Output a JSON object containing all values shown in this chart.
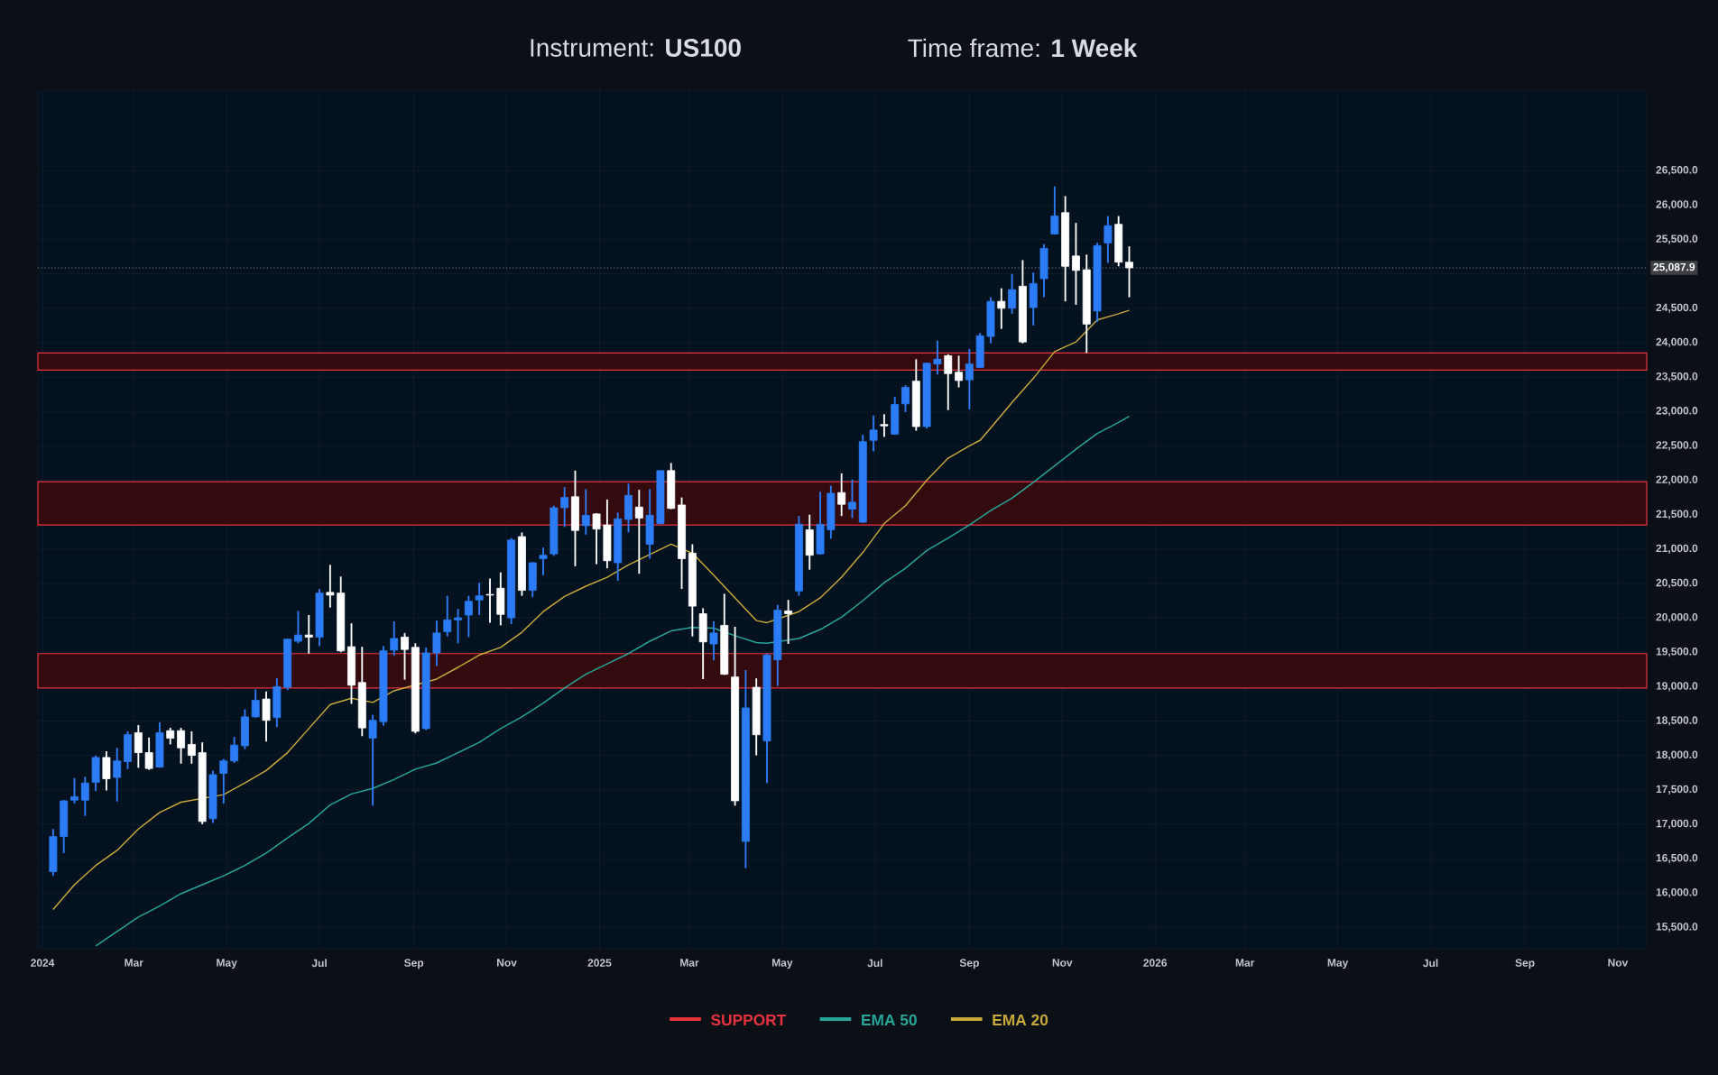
{
  "chart_data": {
    "type": "candlestick",
    "title": "Instrument: **US100**",
    "subtitle": "Time frame: **1 Week**",
    "x": [
      "2024-01-08",
      "2024-01-15",
      "2024-01-22",
      "2024-01-29",
      "2024-02-05",
      "2024-02-12",
      "2024-02-19",
      "2024-02-26",
      "2024-03-04",
      "2024-03-11",
      "2024-03-18",
      "2024-03-25",
      "2024-04-01",
      "2024-04-08",
      "2024-04-15",
      "2024-04-22",
      "2024-04-29",
      "2024-05-06",
      "2024-05-13",
      "2024-05-20",
      "2024-05-27",
      "2024-06-03",
      "2024-06-10",
      "2024-06-17",
      "2024-06-24",
      "2024-07-01",
      "2024-07-08",
      "2024-07-15",
      "2024-07-22",
      "2024-07-29",
      "2024-08-05",
      "2024-08-12",
      "2024-08-19",
      "2024-08-26",
      "2024-09-02",
      "2024-09-09",
      "2024-09-16",
      "2024-09-23",
      "2024-09-30",
      "2024-10-07",
      "2024-10-14",
      "2024-10-21",
      "2024-10-28",
      "2024-11-04",
      "2024-11-11",
      "2024-11-18",
      "2024-11-25",
      "2024-12-02",
      "2024-12-09",
      "2024-12-16",
      "2024-12-23",
      "2024-12-30",
      "2025-01-06",
      "2025-01-13",
      "2025-01-20",
      "2025-01-27",
      "2025-02-03",
      "2025-02-10",
      "2025-02-17",
      "2025-02-24",
      "2025-03-03",
      "2025-03-10",
      "2025-03-17",
      "2025-03-24",
      "2025-03-31",
      "2025-04-07",
      "2025-04-14",
      "2025-04-21",
      "2025-04-28",
      "2025-05-05",
      "2025-05-12",
      "2025-05-19",
      "2025-05-26",
      "2025-06-02",
      "2025-06-09",
      "2025-06-16",
      "2025-06-23",
      "2025-06-30",
      "2025-07-07",
      "2025-07-14",
      "2025-07-21",
      "2025-07-28",
      "2025-08-04",
      "2025-08-11",
      "2025-08-18",
      "2025-08-25",
      "2025-09-01",
      "2025-09-08",
      "2025-09-15",
      "2025-09-22",
      "2025-09-29",
      "2025-10-06",
      "2025-10-13",
      "2025-10-20",
      "2025-10-27",
      "2025-11-03",
      "2025-11-10",
      "2025-11-17",
      "2025-11-24",
      "2025-12-01",
      "2025-12-08",
      "2025-12-15"
    ],
    "ohlc": [
      [
        16310,
        16930,
        16250,
        16820
      ],
      [
        16820,
        17350,
        16580,
        17340
      ],
      [
        17350,
        17670,
        17300,
        17400
      ],
      [
        17350,
        17690,
        17120,
        17600
      ],
      [
        17610,
        18000,
        17480,
        17970
      ],
      [
        17970,
        18060,
        17490,
        17660
      ],
      [
        17680,
        18110,
        17330,
        17920
      ],
      [
        17910,
        18350,
        17800,
        18300
      ],
      [
        18330,
        18440,
        17820,
        18040
      ],
      [
        18040,
        18260,
        17790,
        17810
      ],
      [
        17830,
        18480,
        17820,
        18330
      ],
      [
        18360,
        18400,
        18160,
        18250
      ],
      [
        18360,
        18400,
        17880,
        18110
      ],
      [
        18160,
        18350,
        17880,
        18000
      ],
      [
        18040,
        18190,
        17000,
        17040
      ],
      [
        17080,
        17780,
        17020,
        17720
      ],
      [
        17740,
        17950,
        17300,
        17920
      ],
      [
        17920,
        18270,
        17890,
        18150
      ],
      [
        18140,
        18670,
        18090,
        18560
      ],
      [
        18560,
        18960,
        18550,
        18800
      ],
      [
        18820,
        18930,
        18200,
        18510
      ],
      [
        18550,
        19120,
        18410,
        19000
      ],
      [
        18990,
        19690,
        18950,
        19690
      ],
      [
        19660,
        20100,
        19630,
        19750
      ],
      [
        19750,
        20040,
        19480,
        19720
      ],
      [
        19720,
        20420,
        19590,
        20360
      ],
      [
        20370,
        20770,
        20150,
        20330
      ],
      [
        20360,
        20600,
        19500,
        19520
      ],
      [
        19580,
        19920,
        18750,
        19020
      ],
      [
        19060,
        19580,
        18280,
        18400
      ],
      [
        18250,
        18590,
        17270,
        18510
      ],
      [
        18490,
        19590,
        18430,
        19520
      ],
      [
        19530,
        19950,
        19450,
        19700
      ],
      [
        19720,
        19780,
        19100,
        19540
      ],
      [
        19570,
        19630,
        18320,
        18350
      ],
      [
        18390,
        19570,
        18370,
        19490
      ],
      [
        19490,
        19960,
        19300,
        19780
      ],
      [
        19800,
        20320,
        19730,
        19970
      ],
      [
        19970,
        20130,
        19630,
        20000
      ],
      [
        20040,
        20320,
        19720,
        20240
      ],
      [
        20260,
        20510,
        20040,
        20320
      ],
      [
        20340,
        20570,
        19930,
        20330
      ],
      [
        20430,
        20660,
        19890,
        20050
      ],
      [
        20000,
        21160,
        19910,
        21130
      ],
      [
        21180,
        21240,
        20320,
        20400
      ],
      [
        20400,
        20810,
        20300,
        20800
      ],
      [
        20860,
        21020,
        20620,
        20910
      ],
      [
        20930,
        21630,
        20900,
        21600
      ],
      [
        21600,
        21900,
        21320,
        21750
      ],
      [
        21760,
        22140,
        20750,
        21270
      ],
      [
        21340,
        21870,
        21210,
        21490
      ],
      [
        21510,
        21520,
        20780,
        21290
      ],
      [
        21350,
        21720,
        20720,
        20830
      ],
      [
        20800,
        21530,
        20540,
        21440
      ],
      [
        21430,
        21950,
        21240,
        21780
      ],
      [
        21610,
        21860,
        20640,
        21450
      ],
      [
        21070,
        21870,
        20860,
        21490
      ],
      [
        21370,
        22140,
        21360,
        22140
      ],
      [
        22140,
        22250,
        21580,
        21590
      ],
      [
        21640,
        21750,
        20420,
        20860
      ],
      [
        20940,
        21070,
        19730,
        20170
      ],
      [
        20060,
        20140,
        19110,
        19650
      ],
      [
        19620,
        19950,
        19380,
        19780
      ],
      [
        19890,
        20350,
        19170,
        19180
      ],
      [
        19140,
        19870,
        17270,
        17340
      ],
      [
        16750,
        19240,
        16360,
        18690
      ],
      [
        18990,
        19120,
        18000,
        18300
      ],
      [
        18210,
        19480,
        17600,
        19460
      ],
      [
        19390,
        20190,
        19010,
        20110
      ],
      [
        20100,
        20260,
        19620,
        20060
      ],
      [
        20390,
        21480,
        20320,
        21360
      ],
      [
        21280,
        21500,
        20700,
        20910
      ],
      [
        20930,
        21830,
        20920,
        21360
      ],
      [
        21280,
        21920,
        21150,
        21810
      ],
      [
        21820,
        22100,
        21480,
        21650
      ],
      [
        21580,
        22010,
        21450,
        21680
      ],
      [
        21390,
        22660,
        21380,
        22560
      ],
      [
        22580,
        22940,
        22420,
        22730
      ],
      [
        22810,
        22960,
        22630,
        22790
      ],
      [
        22670,
        23210,
        22660,
        23100
      ],
      [
        23110,
        23380,
        22990,
        23350
      ],
      [
        23440,
        23760,
        22720,
        22780
      ],
      [
        22780,
        23710,
        22750,
        23700
      ],
      [
        23690,
        24030,
        23540,
        23760
      ],
      [
        23810,
        23830,
        23020,
        23550
      ],
      [
        23570,
        23810,
        23350,
        23450
      ],
      [
        23460,
        23910,
        23030,
        23690
      ],
      [
        23640,
        24140,
        23630,
        24100
      ],
      [
        24090,
        24660,
        23990,
        24600
      ],
      [
        24600,
        24790,
        24200,
        24500
      ],
      [
        24500,
        25000,
        24420,
        24770
      ],
      [
        24820,
        25200,
        23990,
        24010
      ],
      [
        24510,
        25020,
        24250,
        24860
      ],
      [
        24930,
        25430,
        24660,
        25370
      ],
      [
        25580,
        26270,
        25570,
        25840
      ],
      [
        25890,
        26130,
        24600,
        25110
      ],
      [
        25260,
        25740,
        24550,
        25050
      ],
      [
        25060,
        25280,
        23850,
        24270
      ],
      [
        24460,
        25450,
        24300,
        25410
      ],
      [
        25450,
        25840,
        25160,
        25700
      ],
      [
        25720,
        25840,
        25110,
        25170
      ],
      [
        25170,
        25400,
        24660,
        25087.9
      ]
    ],
    "colors": [
      "#2b7cf6",
      "#2b7cf6",
      "#2b7cf6",
      "#2b7cf6",
      "#2b7cf6",
      "#ffffff",
      "#2b7cf6",
      "#2b7cf6",
      "#ffffff",
      "#ffffff",
      "#2b7cf6",
      "#ffffff",
      "#ffffff",
      "#ffffff",
      "#ffffff",
      "#2b7cf6",
      "#2b7cf6",
      "#2b7cf6",
      "#2b7cf6",
      "#2b7cf6",
      "#ffffff",
      "#2b7cf6",
      "#2b7cf6",
      "#2b7cf6",
      "#ffffff",
      "#2b7cf6",
      "#ffffff",
      "#ffffff",
      "#ffffff",
      "#ffffff",
      "#2b7cf6",
      "#2b7cf6",
      "#2b7cf6",
      "#ffffff",
      "#ffffff",
      "#2b7cf6",
      "#2b7cf6",
      "#2b7cf6",
      "#2b7cf6",
      "#2b7cf6",
      "#2b7cf6",
      "#ffffff",
      "#ffffff",
      "#2b7cf6",
      "#ffffff",
      "#2b7cf6",
      "#2b7cf6",
      "#2b7cf6",
      "#2b7cf6",
      "#ffffff",
      "#2b7cf6",
      "#ffffff",
      "#ffffff",
      "#2b7cf6",
      "#2b7cf6",
      "#ffffff",
      "#2b7cf6",
      "#2b7cf6",
      "#ffffff",
      "#ffffff",
      "#ffffff",
      "#ffffff",
      "#2b7cf6",
      "#ffffff",
      "#ffffff",
      "#2b7cf6",
      "#ffffff",
      "#2b7cf6",
      "#2b7cf6",
      "#ffffff",
      "#2b7cf6",
      "#ffffff",
      "#2b7cf6",
      "#2b7cf6",
      "#ffffff",
      "#2b7cf6",
      "#2b7cf6",
      "#2b7cf6",
      "#ffffff",
      "#2b7cf6",
      "#2b7cf6",
      "#ffffff",
      "#2b7cf6",
      "#2b7cf6",
      "#ffffff",
      "#ffffff",
      "#2b7cf6",
      "#2b7cf6",
      "#2b7cf6",
      "#ffffff",
      "#2b7cf6",
      "#ffffff",
      "#2b7cf6",
      "#2b7cf6",
      "#2b7cf6",
      "#ffffff",
      "#ffffff",
      "#ffffff",
      "#2b7cf6",
      "#2b7cf6",
      "#ffffff",
      "#ffffff"
    ],
    "series": [
      {
        "type": "line",
        "name": "EMA 50",
        "color": "#26a69a",
        "x": [
          "2024-02-05",
          "2024-02-19",
          "2024-03-04",
          "2024-03-18",
          "2024-04-01",
          "2024-04-15",
          "2024-04-29",
          "2024-05-13",
          "2024-05-27",
          "2024-06-10",
          "2024-06-24",
          "2024-07-08",
          "2024-07-22",
          "2024-08-05",
          "2024-08-19",
          "2024-09-02",
          "2024-09-16",
          "2024-09-30",
          "2024-10-14",
          "2024-10-28",
          "2024-11-11",
          "2024-11-25",
          "2024-12-09",
          "2024-12-23",
          "2025-01-06",
          "2025-01-20",
          "2025-02-03",
          "2025-02-17",
          "2025-03-03",
          "2025-03-17",
          "2025-03-31",
          "2025-04-14",
          "2025-04-21",
          "2025-04-28",
          "2025-05-12",
          "2025-05-26",
          "2025-06-09",
          "2025-06-23",
          "2025-07-07",
          "2025-07-21",
          "2025-08-04",
          "2025-08-18",
          "2025-09-01",
          "2025-09-15",
          "2025-09-29",
          "2025-10-13",
          "2025-10-27",
          "2025-11-10",
          "2025-11-24",
          "2025-12-08",
          "2025-12-15"
        ],
        "values": [
          15230,
          15440,
          15650,
          15810,
          15990,
          16120,
          16250,
          16400,
          16580,
          16800,
          17010,
          17280,
          17440,
          17520,
          17650,
          17800,
          17890,
          18040,
          18190,
          18390,
          18560,
          18760,
          18980,
          19180,
          19330,
          19480,
          19660,
          19810,
          19860,
          19850,
          19740,
          19640,
          19630,
          null,
          19700,
          19830,
          20010,
          20250,
          20510,
          20720,
          20980,
          21160,
          21350,
          21560,
          21740,
          21970,
          22210,
          22450,
          22680,
          22840,
          22930
        ]
      },
      {
        "type": "line",
        "name": "EMA 20",
        "color": "#c8a93a",
        "x": [
          "2024-01-08",
          "2024-01-22",
          "2024-02-05",
          "2024-02-19",
          "2024-03-04",
          "2024-03-18",
          "2024-04-01",
          "2024-04-15",
          "2024-04-29",
          "2024-05-13",
          "2024-05-27",
          "2024-06-10",
          "2024-06-24",
          "2024-07-08",
          "2024-07-22",
          "2024-08-05",
          "2024-08-19",
          "2024-09-02",
          "2024-09-16",
          "2024-09-30",
          "2024-10-14",
          "2024-10-28",
          "2024-11-11",
          "2024-11-25",
          "2024-12-09",
          "2024-12-23",
          "2025-01-06",
          "2025-01-20",
          "2025-02-03",
          "2025-02-17",
          "2025-03-03",
          "2025-03-17",
          "2025-03-31",
          "2025-04-14",
          "2025-04-21",
          "2025-04-28",
          "2025-05-12",
          "2025-05-26",
          "2025-06-09",
          "2025-06-23",
          "2025-07-07",
          "2025-07-21",
          "2025-08-04",
          "2025-08-18",
          "2025-09-01",
          "2025-09-08",
          "2025-09-15",
          "2025-09-29",
          "2025-10-13",
          "2025-10-27",
          "2025-11-10",
          "2025-11-24",
          "2025-12-08",
          "2025-12-15"
        ],
        "values": [
          15760,
          16120,
          16400,
          16620,
          16930,
          17170,
          17320,
          null,
          17430,
          17600,
          17780,
          18040,
          18390,
          18740,
          18830,
          18770,
          18940,
          null,
          19110,
          19280,
          19460,
          19570,
          19790,
          20090,
          20310,
          20460,
          20590,
          20770,
          20920,
          21070,
          20940,
          20620,
          20290,
          19960,
          19930,
          null,
          20090,
          20290,
          20590,
          20950,
          21370,
          21630,
          22000,
          22320,
          22500,
          22580,
          22760,
          23130,
          23480,
          23870,
          24010,
          24330,
          24420,
          24470
        ]
      }
    ],
    "bands": [
      {
        "axis": "y",
        "from": 23600,
        "to": 23850,
        "label": "SUPPORT",
        "color": "#e8333f"
      },
      {
        "axis": "y",
        "from": 21350,
        "to": 21980,
        "color": "#e8333f"
      },
      {
        "axis": "y",
        "from": 18980,
        "to": 19480,
        "color": "#e8333f"
      }
    ],
    "ref_lines": [
      {
        "axis": "y",
        "value": 25087.9,
        "label": "25,087.9",
        "color": "#8a8f98",
        "line_style": "dotted"
      }
    ],
    "xlim": [
      "2023-12-29",
      "2026-11-20"
    ],
    "xticks": [
      {
        "value": "2024-01-01",
        "label": "2024"
      },
      {
        "value": "2024-03-01",
        "label": "Mar"
      },
      {
        "value": "2024-05-01",
        "label": "May"
      },
      {
        "value": "2024-07-01",
        "label": "Jul"
      },
      {
        "value": "2024-09-01",
        "label": "Sep"
      },
      {
        "value": "2024-11-01",
        "label": "Nov"
      },
      {
        "value": "2025-01-01",
        "label": "2025"
      },
      {
        "value": "2025-03-01",
        "label": "Mar"
      },
      {
        "value": "2025-05-01",
        "label": "May"
      },
      {
        "value": "2025-07-01",
        "label": "Jul"
      },
      {
        "value": "2025-09-01",
        "label": "Sep"
      },
      {
        "value": "2025-11-01",
        "label": "Nov"
      },
      {
        "value": "2026-01-01",
        "label": "2026"
      },
      {
        "value": "2026-03-01",
        "label": "Mar"
      },
      {
        "value": "2026-05-01",
        "label": "May"
      },
      {
        "value": "2026-07-01",
        "label": "Jul"
      },
      {
        "value": "2026-09-01",
        "label": "Sep"
      },
      {
        "value": "2026-11-01",
        "label": "Nov"
      }
    ],
    "ylim": [
      15190,
      27670
    ],
    "yticks": [
      {
        "value": 15500,
        "label": "15,500.0"
      },
      {
        "value": 16000,
        "label": "16,000.0"
      },
      {
        "value": 16500,
        "label": "16,500.0"
      },
      {
        "value": 17000,
        "label": "17,000.0"
      },
      {
        "value": 17500,
        "label": "17,500.0"
      },
      {
        "value": 18000,
        "label": "18,000.0"
      },
      {
        "value": 18500,
        "label": "18,500.0"
      },
      {
        "value": 19000,
        "label": "19,000.0"
      },
      {
        "value": 19500,
        "label": "19,500.0"
      },
      {
        "value": 20000,
        "label": "20,000.0"
      },
      {
        "value": 20500,
        "label": "20,500.0"
      },
      {
        "value": 21000,
        "label": "21,000.0"
      },
      {
        "value": 21500,
        "label": "21,500.0"
      },
      {
        "value": 22000,
        "label": "22,000.0"
      },
      {
        "value": 22500,
        "label": "22,500.0"
      },
      {
        "value": 23000,
        "label": "23,000.0"
      },
      {
        "value": 23500,
        "label": "23,500.0"
      },
      {
        "value": 24000,
        "label": "24,000.0"
      },
      {
        "value": 24500,
        "label": "24,500.0"
      },
      {
        "value": 25000,
        "label": null
      },
      {
        "value": 25500,
        "label": "25,500.0"
      },
      {
        "value": 26000,
        "label": "26,000.0"
      },
      {
        "value": 26500,
        "label": "26,500.0"
      }
    ],
    "grid": true,
    "legend": "bottom"
  }
}
